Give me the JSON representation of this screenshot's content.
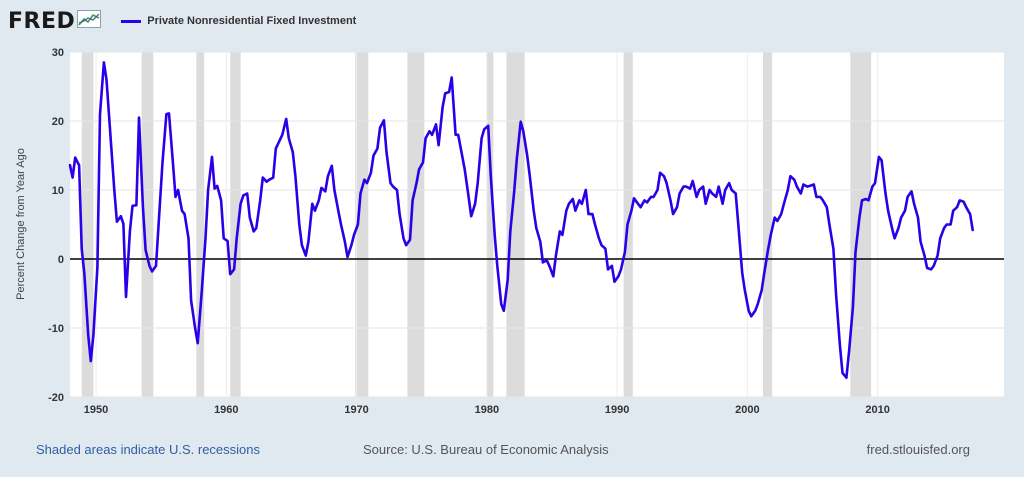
{
  "header": {
    "logo_text": "FRED",
    "logo_icon": "line-chart-icon",
    "legend_label": "Private Nonresidential Fixed Investment",
    "legend_color": "#2b00e8"
  },
  "footer": {
    "recession_note": "Shaded areas indicate U.S. recessions",
    "source": "Source: U.S. Bureau of Economic Analysis",
    "site": "fred.stlouisfed.org"
  },
  "chart_data": {
    "type": "line",
    "title": "",
    "xlabel": "",
    "ylabel": "Percent Change from Year Ago",
    "xlim": [
      1948.0,
      2019.7
    ],
    "ylim": [
      -20,
      30
    ],
    "x_ticks": [
      "1950",
      "1960",
      "1970",
      "1980",
      "1990",
      "2000",
      "2010"
    ],
    "y_ticks": [
      "-20",
      "-10",
      "0",
      "10",
      "20",
      "30"
    ],
    "grid": true,
    "zero_line": true,
    "line_color": "#2b00e8",
    "recession_color": "#dcdcdc",
    "recessions": [
      [
        1948.9,
        1949.8
      ],
      [
        1953.5,
        1954.4
      ],
      [
        1957.7,
        1958.3
      ],
      [
        1960.3,
        1961.1
      ],
      [
        1969.9,
        1970.9
      ],
      [
        1973.9,
        1975.2
      ],
      [
        1980.0,
        1980.5
      ],
      [
        1981.5,
        1982.9
      ],
      [
        1990.5,
        1991.2
      ],
      [
        2001.2,
        2001.9
      ],
      [
        2007.9,
        2009.5
      ]
    ],
    "series": [
      {
        "name": "Private Nonresidential Fixed Investment",
        "points": [
          [
            1948.0,
            13.6
          ],
          [
            1948.2,
            11.8
          ],
          [
            1948.4,
            14.7
          ],
          [
            1948.7,
            13.6
          ],
          [
            1948.9,
            1.5
          ],
          [
            1949.1,
            -2.0
          ],
          [
            1949.4,
            -11.0
          ],
          [
            1949.6,
            -14.8
          ],
          [
            1949.8,
            -11.0
          ],
          [
            1950.1,
            -1.2
          ],
          [
            1950.3,
            21.0
          ],
          [
            1950.6,
            28.5
          ],
          [
            1950.8,
            26.0
          ],
          [
            1951.1,
            18.0
          ],
          [
            1951.4,
            10.0
          ],
          [
            1951.6,
            5.4
          ],
          [
            1951.9,
            6.2
          ],
          [
            1952.1,
            5.1
          ],
          [
            1952.3,
            -5.5
          ],
          [
            1952.6,
            4.0
          ],
          [
            1952.8,
            7.7
          ],
          [
            1953.1,
            7.8
          ],
          [
            1953.3,
            20.5
          ],
          [
            1953.6,
            7.6
          ],
          [
            1953.8,
            1.3
          ],
          [
            1954.1,
            -1.0
          ],
          [
            1954.3,
            -1.8
          ],
          [
            1954.6,
            -1.0
          ],
          [
            1954.8,
            5.0
          ],
          [
            1955.1,
            14.0
          ],
          [
            1955.4,
            21.0
          ],
          [
            1955.6,
            21.1
          ],
          [
            1955.9,
            14.0
          ],
          [
            1956.1,
            9.0
          ],
          [
            1956.3,
            10.0
          ],
          [
            1956.6,
            7.0
          ],
          [
            1956.8,
            6.5
          ],
          [
            1957.1,
            3.0
          ],
          [
            1957.3,
            -6.0
          ],
          [
            1957.6,
            -10.0
          ],
          [
            1957.8,
            -12.2
          ],
          [
            1958.1,
            -5.0
          ],
          [
            1958.4,
            3.0
          ],
          [
            1958.6,
            10.0
          ],
          [
            1958.9,
            14.8
          ],
          [
            1959.1,
            10.2
          ],
          [
            1959.3,
            10.6
          ],
          [
            1959.6,
            8.5
          ],
          [
            1959.8,
            3.0
          ],
          [
            1960.1,
            2.6
          ],
          [
            1960.3,
            -2.2
          ],
          [
            1960.6,
            -1.5
          ],
          [
            1960.8,
            3.0
          ],
          [
            1961.1,
            8.0
          ],
          [
            1961.3,
            9.2
          ],
          [
            1961.6,
            9.5
          ],
          [
            1961.8,
            6.0
          ],
          [
            1962.1,
            4.0
          ],
          [
            1962.3,
            4.5
          ],
          [
            1962.6,
            8.5
          ],
          [
            1962.8,
            11.8
          ],
          [
            1963.1,
            11.2
          ],
          [
            1963.3,
            11.5
          ],
          [
            1963.6,
            11.8
          ],
          [
            1963.8,
            16.0
          ],
          [
            1964.1,
            17.2
          ],
          [
            1964.3,
            18.0
          ],
          [
            1964.6,
            20.3
          ],
          [
            1964.8,
            17.5
          ],
          [
            1965.1,
            15.5
          ],
          [
            1965.3,
            12.0
          ],
          [
            1965.6,
            5.0
          ],
          [
            1965.8,
            2.0
          ],
          [
            1966.1,
            0.5
          ],
          [
            1966.3,
            2.5
          ],
          [
            1966.6,
            8.0
          ],
          [
            1966.8,
            7.0
          ],
          [
            1967.1,
            8.5
          ],
          [
            1967.3,
            10.3
          ],
          [
            1967.6,
            9.8
          ],
          [
            1967.8,
            12.0
          ],
          [
            1968.1,
            13.5
          ],
          [
            1968.3,
            10.0
          ],
          [
            1968.6,
            7.0
          ],
          [
            1968.8,
            5.0
          ],
          [
            1969.1,
            2.5
          ],
          [
            1969.3,
            0.3
          ],
          [
            1969.6,
            2.0
          ],
          [
            1969.8,
            3.5
          ],
          [
            1970.1,
            5.0
          ],
          [
            1970.3,
            9.5
          ],
          [
            1970.6,
            11.5
          ],
          [
            1970.8,
            11.0
          ],
          [
            1971.1,
            12.5
          ],
          [
            1971.3,
            15.0
          ],
          [
            1971.6,
            16.0
          ],
          [
            1971.8,
            19.0
          ],
          [
            1972.1,
            20.1
          ],
          [
            1972.3,
            15.5
          ],
          [
            1972.6,
            11.0
          ],
          [
            1972.8,
            10.5
          ],
          [
            1973.1,
            10.0
          ],
          [
            1973.3,
            6.5
          ],
          [
            1973.6,
            3.0
          ],
          [
            1973.8,
            2.0
          ],
          [
            1974.1,
            2.8
          ],
          [
            1974.3,
            8.5
          ],
          [
            1974.6,
            11.0
          ],
          [
            1974.8,
            13.0
          ],
          [
            1975.1,
            14.0
          ],
          [
            1975.3,
            17.5
          ],
          [
            1975.6,
            18.5
          ],
          [
            1975.8,
            18.0
          ],
          [
            1976.1,
            19.5
          ],
          [
            1976.3,
            16.5
          ],
          [
            1976.6,
            22.0
          ],
          [
            1976.8,
            24.0
          ],
          [
            1977.1,
            24.2
          ],
          [
            1977.3,
            26.3
          ],
          [
            1977.6,
            18.0
          ],
          [
            1977.8,
            18.0
          ],
          [
            1978.1,
            15.0
          ],
          [
            1978.3,
            13.0
          ],
          [
            1978.6,
            9.0
          ],
          [
            1978.8,
            6.2
          ],
          [
            1979.1,
            8.0
          ],
          [
            1979.3,
            11.0
          ],
          [
            1979.6,
            17.5
          ],
          [
            1979.8,
            18.8
          ],
          [
            1980.1,
            19.3
          ],
          [
            1980.3,
            12.0
          ],
          [
            1980.6,
            3.5
          ],
          [
            1980.8,
            -1.0
          ],
          [
            1981.1,
            -6.5
          ],
          [
            1981.3,
            -7.5
          ],
          [
            1981.6,
            -3.0
          ],
          [
            1981.8,
            4.0
          ],
          [
            1982.1,
            9.8
          ],
          [
            1982.3,
            14.5
          ],
          [
            1982.6,
            19.9
          ],
          [
            1982.8,
            18.5
          ],
          [
            1983.1,
            15.0
          ],
          [
            1983.3,
            12.0
          ],
          [
            1983.6,
            7.0
          ],
          [
            1983.8,
            4.5
          ],
          [
            1984.1,
            2.5
          ],
          [
            1984.3,
            -0.5
          ],
          [
            1984.6,
            -0.2
          ],
          [
            1984.8,
            -1.0
          ],
          [
            1985.1,
            -2.5
          ],
          [
            1985.3,
            0.5
          ],
          [
            1985.6,
            4.0
          ],
          [
            1985.8,
            3.5
          ],
          [
            1986.1,
            7.0
          ],
          [
            1986.3,
            8.0
          ],
          [
            1986.6,
            8.7
          ],
          [
            1986.8,
            7.0
          ],
          [
            1987.1,
            8.5
          ],
          [
            1987.3,
            8.0
          ],
          [
            1987.6,
            10.0
          ],
          [
            1987.8,
            6.5
          ],
          [
            1988.1,
            6.5
          ],
          [
            1988.3,
            5.0
          ],
          [
            1988.6,
            3.0
          ],
          [
            1988.8,
            2.0
          ],
          [
            1989.1,
            1.5
          ],
          [
            1989.3,
            -1.5
          ],
          [
            1989.6,
            -1.0
          ],
          [
            1989.8,
            -3.3
          ],
          [
            1990.1,
            -2.5
          ],
          [
            1990.3,
            -1.5
          ],
          [
            1990.6,
            1.0
          ],
          [
            1990.8,
            5.0
          ],
          [
            1991.1,
            7.0
          ],
          [
            1991.3,
            8.8
          ],
          [
            1991.6,
            8.0
          ],
          [
            1991.8,
            7.5
          ],
          [
            1992.1,
            8.5
          ],
          [
            1992.3,
            8.2
          ],
          [
            1992.6,
            9.0
          ],
          [
            1992.8,
            9.0
          ],
          [
            1993.1,
            10.0
          ],
          [
            1993.3,
            12.5
          ],
          [
            1993.6,
            12.0
          ],
          [
            1993.8,
            11.0
          ],
          [
            1994.1,
            8.5
          ],
          [
            1994.3,
            6.5
          ],
          [
            1994.6,
            7.5
          ],
          [
            1994.8,
            9.5
          ],
          [
            1995.1,
            10.5
          ],
          [
            1995.3,
            10.5
          ],
          [
            1995.6,
            10.2
          ],
          [
            1995.8,
            11.3
          ],
          [
            1996.1,
            9.0
          ],
          [
            1996.3,
            10.0
          ],
          [
            1996.6,
            10.5
          ],
          [
            1996.8,
            8.0
          ],
          [
            1997.1,
            10.0
          ],
          [
            1997.3,
            9.5
          ],
          [
            1997.6,
            9.0
          ],
          [
            1997.8,
            10.5
          ],
          [
            1998.1,
            8.0
          ],
          [
            1998.3,
            10.0
          ],
          [
            1998.6,
            11.0
          ],
          [
            1998.8,
            10.0
          ],
          [
            1999.1,
            9.5
          ],
          [
            1999.3,
            5.0
          ],
          [
            1999.6,
            -2.0
          ],
          [
            1999.8,
            -4.5
          ],
          [
            2000.1,
            -7.5
          ],
          [
            2000.3,
            -8.3
          ],
          [
            2000.6,
            -7.5
          ],
          [
            2000.8,
            -6.5
          ],
          [
            2001.1,
            -4.5
          ],
          [
            2001.3,
            -2.0
          ],
          [
            2001.6,
            1.5
          ],
          [
            2001.8,
            3.5
          ],
          [
            2002.1,
            6.0
          ],
          [
            2002.3,
            5.5
          ],
          [
            2002.6,
            6.5
          ],
          [
            2002.8,
            8.0
          ],
          [
            2003.1,
            10.0
          ],
          [
            2003.3,
            12.0
          ],
          [
            2003.6,
            11.5
          ],
          [
            2003.8,
            10.5
          ],
          [
            2004.1,
            9.5
          ],
          [
            2004.3,
            10.8
          ],
          [
            2004.6,
            10.5
          ],
          [
            2004.8,
            10.6
          ],
          [
            2005.1,
            10.8
          ],
          [
            2005.3,
            9.0
          ],
          [
            2005.6,
            9.0
          ],
          [
            2005.8,
            8.5
          ],
          [
            2006.1,
            7.5
          ],
          [
            2006.3,
            5.0
          ],
          [
            2006.6,
            1.5
          ],
          [
            2006.8,
            -5.0
          ],
          [
            2007.1,
            -12.5
          ],
          [
            2007.3,
            -16.5
          ],
          [
            2007.6,
            -17.2
          ],
          [
            2007.8,
            -13.5
          ],
          [
            2008.1,
            -7.0
          ],
          [
            2008.3,
            1.0
          ],
          [
            2008.6,
            6.0
          ],
          [
            2008.8,
            8.5
          ],
          [
            2009.1,
            8.7
          ],
          [
            2009.3,
            8.5
          ],
          [
            2009.6,
            10.5
          ],
          [
            2009.8,
            11.0
          ],
          [
            2010.1,
            14.8
          ],
          [
            2010.3,
            14.3
          ],
          [
            2010.6,
            9.5
          ],
          [
            2010.8,
            7.0
          ],
          [
            2011.1,
            4.5
          ],
          [
            2011.3,
            3.0
          ],
          [
            2011.6,
            4.5
          ],
          [
            2011.8,
            6.0
          ],
          [
            2012.1,
            7.0
          ],
          [
            2012.3,
            9.0
          ],
          [
            2012.6,
            9.8
          ],
          [
            2012.8,
            8.0
          ],
          [
            2013.1,
            6.0
          ],
          [
            2013.3,
            2.5
          ],
          [
            2013.6,
            0.5
          ],
          [
            2013.8,
            -1.3
          ],
          [
            2014.1,
            -1.5
          ],
          [
            2014.3,
            -1.0
          ],
          [
            2014.6,
            0.5
          ],
          [
            2014.8,
            3.0
          ],
          [
            2015.1,
            4.5
          ],
          [
            2015.3,
            5.0
          ],
          [
            2015.6,
            5.0
          ],
          [
            2015.8,
            7.0
          ],
          [
            2016.1,
            7.5
          ],
          [
            2016.3,
            8.5
          ],
          [
            2016.6,
            8.3
          ],
          [
            2016.8,
            7.5
          ],
          [
            2017.1,
            6.5
          ],
          [
            2017.3,
            4.2
          ]
        ]
      }
    ]
  }
}
